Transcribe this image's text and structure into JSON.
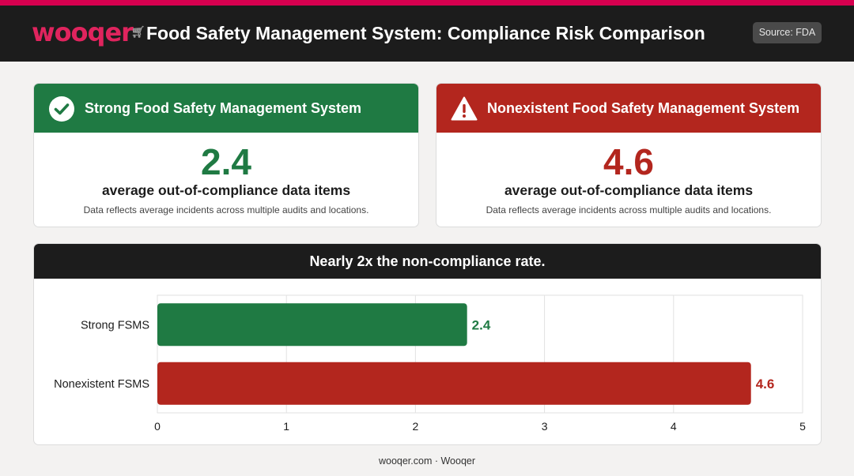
{
  "header": {
    "logo_text": "wooqer",
    "title": "Food Safety Management System: Compliance Risk Comparison",
    "source": "Source: FDA"
  },
  "cards": [
    {
      "title": "Strong Food Safety Management System",
      "value": "2.4",
      "subtitle": "average out-of-compliance data items",
      "note": "Data reflects average incidents across multiple audits and locations.",
      "icon": "check-circle-icon"
    },
    {
      "title": "Nonexistent Food Safety Management System",
      "value": "4.6",
      "subtitle": "average out-of-compliance data items",
      "note": "Data reflects average incidents across multiple audits and locations.",
      "icon": "warning-triangle-icon"
    }
  ],
  "chart_panel": {
    "title": "Nearly 2x the non-compliance rate."
  },
  "chart_data": {
    "type": "bar",
    "orientation": "horizontal",
    "categories": [
      "Strong FSMS",
      "Nonexistent FSMS"
    ],
    "values": [
      2.4,
      4.6
    ],
    "value_labels": [
      "2.4",
      "4.6"
    ],
    "colors": [
      "#1f7a43",
      "#b3261e"
    ],
    "xlim": [
      0,
      5
    ],
    "xticks": [
      "0",
      "1",
      "2",
      "3",
      "4",
      "5"
    ],
    "grid": true
  },
  "footer": {
    "text": "wooqer.com · Wooqer"
  }
}
